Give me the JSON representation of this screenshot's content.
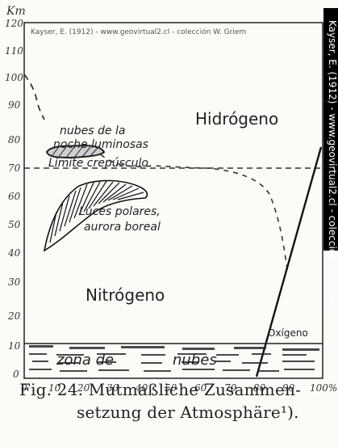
{
  "diagram": {
    "watermark_top": "Kayser, E. (1912) - www.geovirtual2.cl - colección W. Griem",
    "watermark_side": "Kayser, E. (1912) - www.geovirtual2.cl - colección W. Griem",
    "y_axis_unit": "Km",
    "y_ticks": [
      "120",
      "110",
      "100",
      "90",
      "80",
      "70",
      "60",
      "50",
      "40",
      "30",
      "20",
      "10",
      "0"
    ],
    "x_ticks": [
      "0",
      "10",
      "20",
      "30",
      "40",
      "50",
      "60",
      "70",
      "80",
      "90",
      "100%"
    ],
    "labels": {
      "hydrogen": "Hidrógeno",
      "nitrogen": "Nitrógeno",
      "oxygen": "Oxígeno",
      "noctilucent": [
        "nubes de la",
        "noche luminosas"
      ],
      "twilight_limit": "Límite crepúsculo",
      "aurora": [
        "Luces polares,",
        "aurora boreal"
      ],
      "clouds_zone_a": "zona de",
      "clouds_zone_b": "nubes"
    },
    "caption_line1": "Fig. 24.   Mutmaßliche Zusammen-",
    "caption_line2": "setzung der Atmosphäre¹)."
  }
}
